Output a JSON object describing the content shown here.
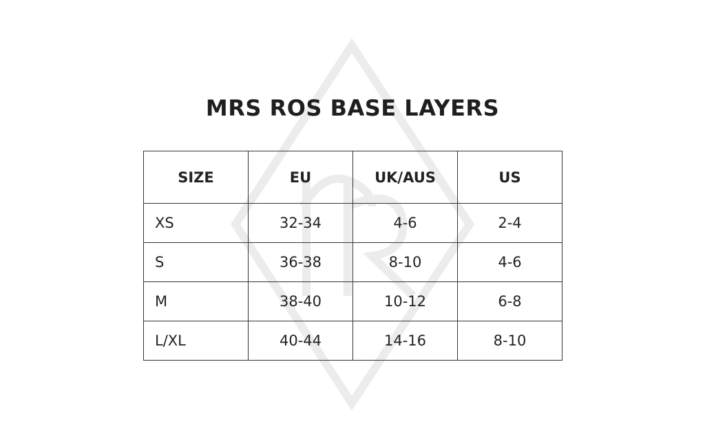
{
  "title": "MRS ROS BASE LAYERS",
  "table": {
    "headers": [
      "SIZE",
      "EU",
      "UK/AUS",
      "US"
    ],
    "rows": [
      [
        "XS",
        "32-34",
        "4-6",
        "2-4"
      ],
      [
        "S",
        "36-38",
        "8-10",
        "4-6"
      ],
      [
        "M",
        "38-40",
        "10-12",
        "6-8"
      ],
      [
        "L/XL",
        "40-44",
        "14-16",
        "8-10"
      ]
    ]
  },
  "watermark": {
    "icon": "diamond-monogram-logo",
    "color": "#ececec"
  }
}
